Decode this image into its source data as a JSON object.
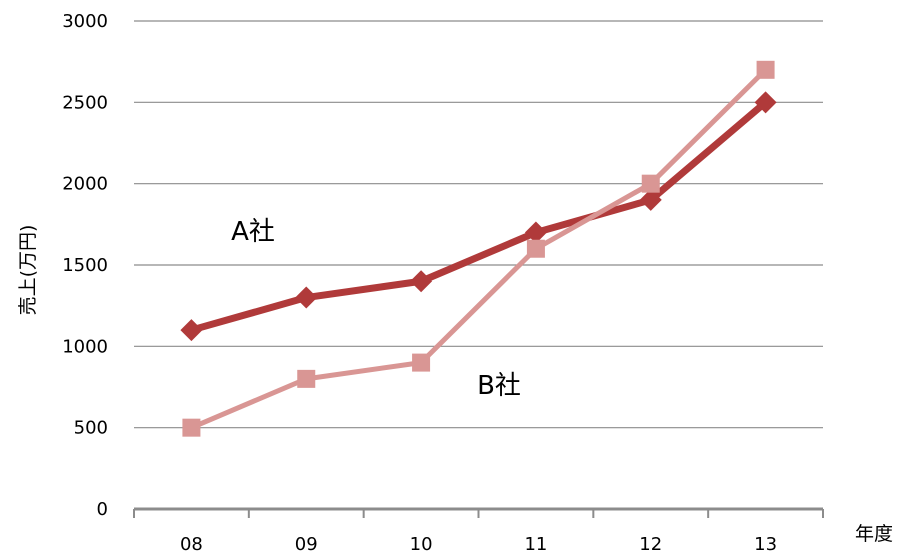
{
  "chart_data": {
    "type": "line",
    "title": "",
    "xlabel": "年度",
    "ylabel": "売上(万円)",
    "categories": [
      "08",
      "09",
      "10",
      "11",
      "12",
      "13"
    ],
    "ylim": [
      0,
      3000
    ],
    "yticks": [
      0,
      500,
      1000,
      1500,
      2000,
      2500,
      3000
    ],
    "grid": true,
    "legend": "none",
    "series": [
      {
        "name": "A社",
        "values": [
          1100,
          1300,
          1400,
          1700,
          1900,
          2500
        ],
        "color": "#b03a3a",
        "marker": "diamond"
      },
      {
        "name": "B社",
        "values": [
          500,
          800,
          900,
          1600,
          2000,
          2700
        ],
        "color": "#d99694",
        "marker": "square"
      }
    ]
  }
}
